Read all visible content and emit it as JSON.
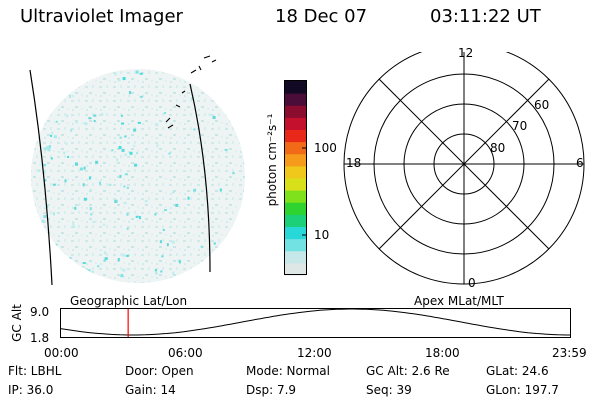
{
  "header": {
    "instrument": "Ultraviolet Imager",
    "date": "18 Dec 07",
    "time": "03:11:22 UT"
  },
  "colorbar": {
    "unit_label": "photon cm⁻²s⁻¹",
    "tick_labels": [
      "100",
      "10"
    ],
    "colors": [
      "#dfe6e6",
      "#c6e8e8",
      "#72e2e2",
      "#28d8d8",
      "#1cd07a",
      "#2fd32f",
      "#7fe01c",
      "#d8e01a",
      "#f0c81c",
      "#f59a1a",
      "#f06a18",
      "#e82818",
      "#c4102c",
      "#8a0c2e",
      "#4a0c38",
      "#120a24"
    ]
  },
  "polar_grid": {
    "mlt_labels": {
      "top": "12",
      "left": "18",
      "right": "6",
      "bottom": "0"
    },
    "lat_labels": [
      "60",
      "70",
      "80"
    ]
  },
  "timeline": {
    "left_title": "Geographic Lat/Lon",
    "right_title": "Apex MLat/MLT",
    "y_axis_label": "GC Alt",
    "y_ticks": [
      "9.0",
      "1.8"
    ],
    "x_ticks": [
      "00:00",
      "06:00",
      "12:00",
      "18:00",
      "23:59"
    ],
    "marker_time": "03:11",
    "accent": "#ff0000"
  },
  "info": {
    "flt": "Flt: LBHL",
    "door": "Door: Open",
    "mode": "Mode: Normal",
    "gc_alt": "GC Alt: 2.6 Re",
    "glat": "GLat:  24.6",
    "ip": "IP: 36.0",
    "gain": "Gain: 14",
    "dsp": "Dsp:    7.9",
    "seq": "Seq: 39",
    "glon": "GLon: 197.7"
  }
}
